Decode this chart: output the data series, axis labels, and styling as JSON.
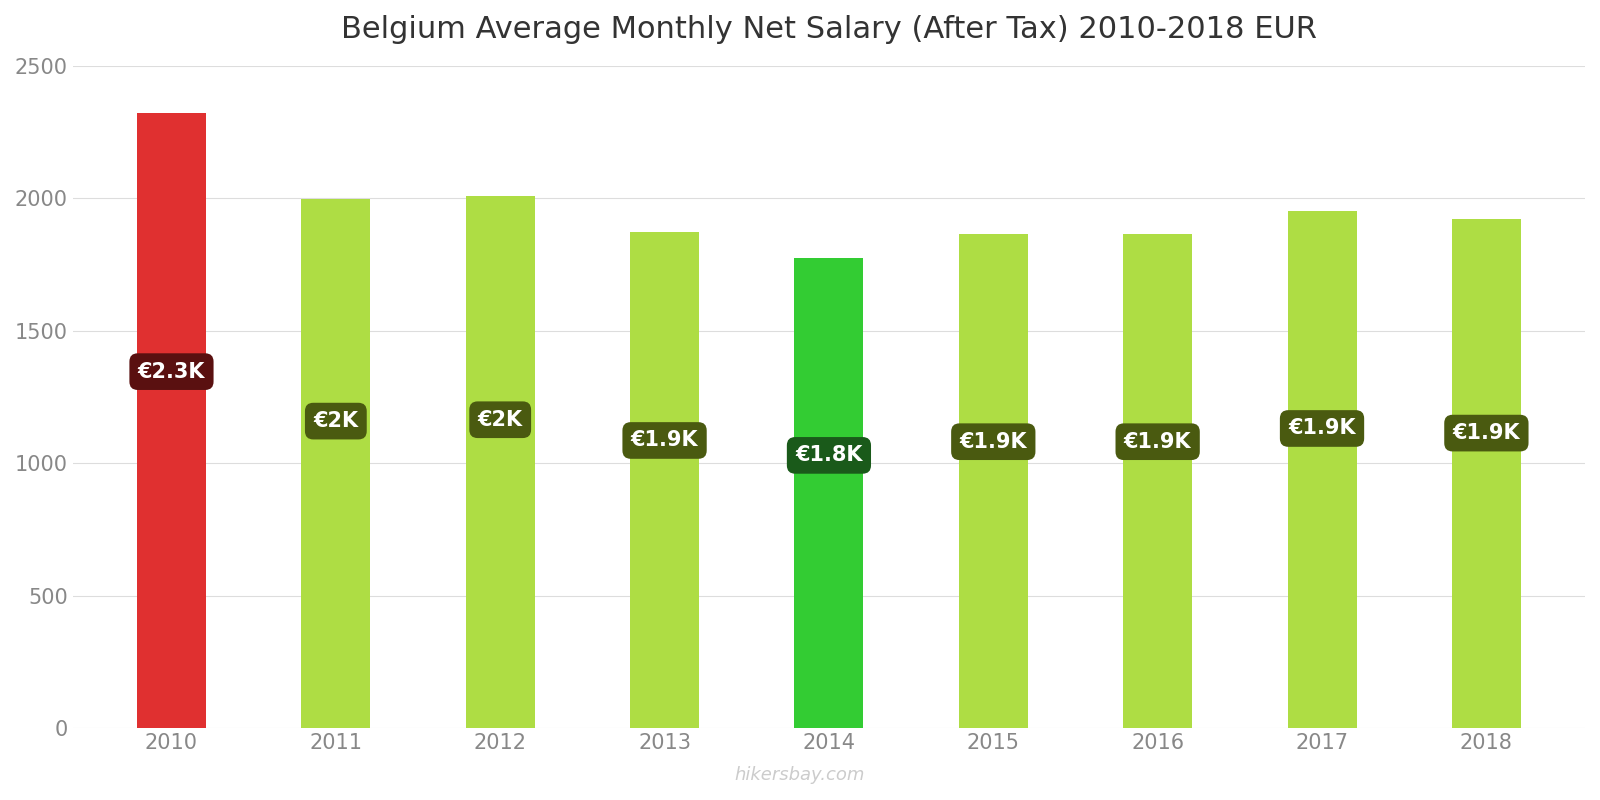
{
  "title": "Belgium Average Monthly Net Salary (After Tax) 2010-2018 EUR",
  "years": [
    2010,
    2011,
    2012,
    2013,
    2014,
    2015,
    2016,
    2017,
    2018
  ],
  "values": [
    2320,
    1998,
    2007,
    1872,
    1775,
    1864,
    1864,
    1950,
    1920
  ],
  "labels": [
    "€2.3K",
    "€2K",
    "€2K",
    "€1.9K",
    "€1.8K",
    "€1.9K",
    "€1.9K",
    "€1.9K",
    "€1.9K"
  ],
  "bar_colors": [
    "#e03030",
    "#aedd44",
    "#aedd44",
    "#aedd44",
    "#33cc33",
    "#aedd44",
    "#aedd44",
    "#aedd44",
    "#aedd44"
  ],
  "label_bg_colors": [
    "#5a1010",
    "#4a5a10",
    "#4a5a10",
    "#4a5a10",
    "#1a5a1a",
    "#4a5a10",
    "#4a5a10",
    "#4a5a10",
    "#4a5a10"
  ],
  "ylim": [
    0,
    2500
  ],
  "yticks": [
    0,
    500,
    1000,
    1500,
    2000,
    2500
  ],
  "watermark": "hikersbay.com",
  "background_color": "#ffffff",
  "label_fontsize": 15,
  "title_fontsize": 22,
  "tick_fontsize": 15,
  "bar_width": 0.42
}
